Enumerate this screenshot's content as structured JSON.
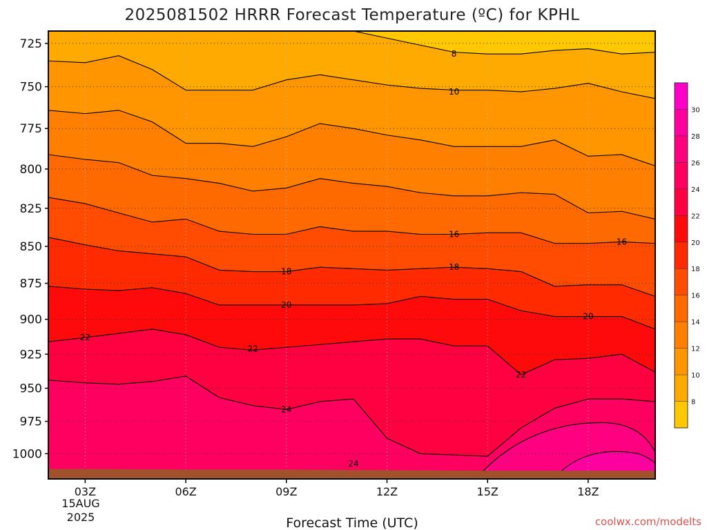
{
  "chart_data": {
    "type": "filled-contour",
    "title": "2025081502 HRRR Forecast Temperature (ºC) for KPHL",
    "xlabel": "Forecast Time (UTC)",
    "ylabel": "",
    "x_ticks": [
      "03Z",
      "06Z",
      "09Z",
      "12Z",
      "15Z",
      "18Z"
    ],
    "x_tick_hours": [
      3,
      6,
      9,
      12,
      15,
      18
    ],
    "x_date_lines": [
      "15AUG",
      "2025"
    ],
    "xlim": [
      1.9,
      20
    ],
    "y_ticks": [
      725,
      750,
      775,
      800,
      825,
      850,
      875,
      900,
      925,
      950,
      975,
      1000
    ],
    "ylim": [
      1020,
      718
    ],
    "y_scale": "log-pressure",
    "grid": true,
    "colorbar": {
      "position": "right",
      "levels": [
        6,
        8,
        10,
        12,
        14,
        16,
        18,
        20,
        22,
        24,
        26,
        28,
        30,
        32
      ],
      "colors": [
        "#ffc800",
        "#ffaa00",
        "#ff9600",
        "#ff8000",
        "#ff6a00",
        "#ff4c00",
        "#ff2a00",
        "#ff0a0a",
        "#ff0040",
        "#ff0060",
        "#ff0080",
        "#ff00a0",
        "#ff00c8"
      ],
      "labels": [
        8,
        10,
        12,
        14,
        16,
        18,
        20,
        22,
        24,
        26,
        28,
        30
      ]
    },
    "ground_color": "#a0522d",
    "surface_pressure": [
      [
        1.9,
        1012
      ],
      [
        3,
        1012
      ],
      [
        6,
        1012.5
      ],
      [
        9,
        1012.5
      ],
      [
        12,
        1013
      ],
      [
        15,
        1013.5
      ],
      [
        18,
        1013.5
      ],
      [
        20,
        1013.5
      ]
    ],
    "isotherm_pressures": {
      "x": [
        1.9,
        3,
        4,
        5,
        6,
        7,
        8,
        9,
        10,
        11,
        12,
        13,
        14,
        15,
        16,
        17,
        18,
        19,
        20
      ],
      "t8": [
        712,
        712,
        712,
        712,
        718,
        718,
        718,
        718,
        718,
        718,
        722,
        726,
        730,
        731,
        731,
        729,
        728,
        731,
        730
      ],
      "t10": [
        735,
        736,
        732,
        740,
        752,
        752,
        752,
        746,
        743,
        746,
        749,
        751,
        752,
        752,
        753,
        751,
        748,
        753,
        757
      ],
      "t12": [
        764,
        766,
        764,
        771,
        784,
        784,
        786,
        780,
        772,
        775,
        779,
        782,
        786,
        786,
        786,
        782,
        792,
        791,
        798
      ],
      "t14": [
        791,
        794,
        796,
        804,
        806,
        809,
        814,
        812,
        806,
        809,
        811,
        815,
        817,
        817,
        815,
        816,
        828,
        827,
        832
      ],
      "t16": [
        818,
        822,
        828,
        834,
        832,
        840,
        842,
        842,
        837,
        840,
        840,
        842,
        842,
        841,
        841,
        848,
        848,
        847,
        848
      ],
      "t18": [
        844,
        849,
        853,
        855,
        857,
        866,
        867,
        867,
        864,
        865,
        866,
        865,
        864,
        865,
        867,
        877,
        876,
        876,
        884
      ],
      "t20": [
        877,
        879,
        880,
        878,
        882,
        890,
        890,
        890,
        890,
        890,
        889,
        884,
        886,
        886,
        894,
        898,
        898,
        898,
        907
      ],
      "t22": [
        916,
        913,
        910,
        907,
        911,
        920,
        922,
        920,
        918,
        916,
        914,
        914,
        919,
        919,
        940,
        929,
        928,
        925,
        938
      ],
      "t24": [
        944,
        946,
        947,
        945,
        941,
        957,
        963,
        966,
        960,
        958,
        988,
        1000,
        1001,
        1002,
        980,
        965,
        958,
        958,
        960
      ]
    },
    "contour_labels": [
      {
        "value": "8",
        "x": 14.0,
        "p": 731
      },
      {
        "value": "10",
        "x": 14.0,
        "p": 753
      },
      {
        "value": "16",
        "x": 14.0,
        "p": 842
      },
      {
        "value": "16",
        "x": 19.0,
        "p": 847
      },
      {
        "value": "18",
        "x": 9.0,
        "p": 867
      },
      {
        "value": "18",
        "x": 14.0,
        "p": 864
      },
      {
        "value": "20",
        "x": 9.0,
        "p": 890
      },
      {
        "value": "20",
        "x": 18.0,
        "p": 898
      },
      {
        "value": "22",
        "x": 3.0,
        "p": 913
      },
      {
        "value": "22",
        "x": 8.0,
        "p": 921
      },
      {
        "value": "22",
        "x": 16.0,
        "p": 940
      },
      {
        "value": "24",
        "x": 9.0,
        "p": 966
      },
      {
        "value": "24",
        "x": 11.0,
        "p": 1008
      }
    ]
  },
  "credit": "coolwx.com/modelts"
}
